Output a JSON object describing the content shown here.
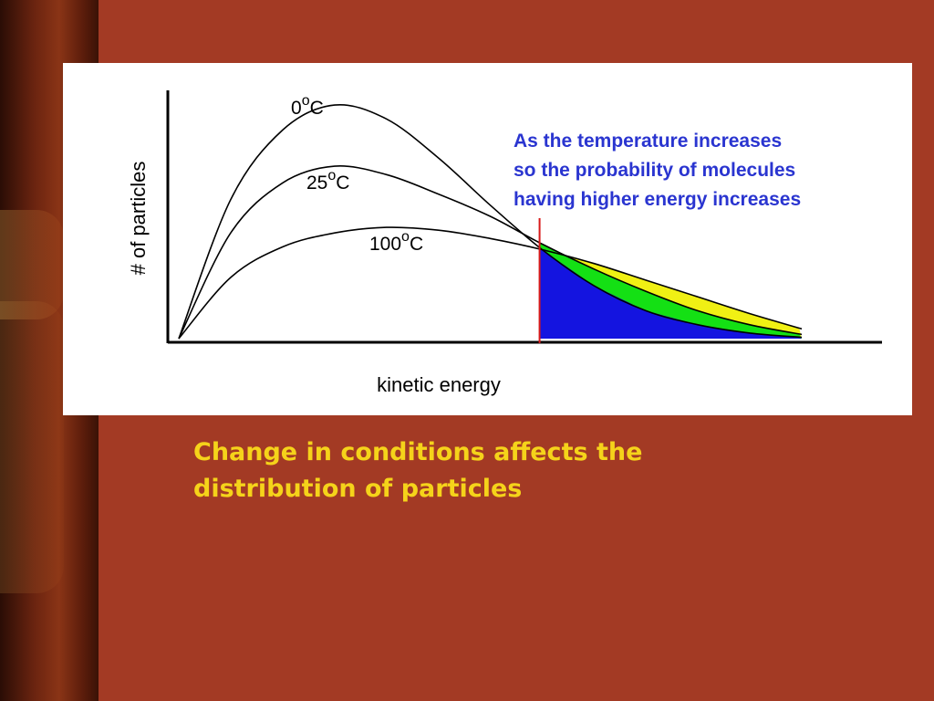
{
  "chart_data": {
    "type": "line",
    "title": "",
    "xlabel": "kinetic energy",
    "ylabel": "# of particles",
    "series": [
      {
        "name": "0",
        "unit": "C",
        "superscript": "o",
        "color": "#000000",
        "x": [
          0,
          1,
          2,
          3,
          4,
          5,
          6,
          7,
          8,
          9,
          10,
          11,
          12
        ],
        "values": [
          0,
          5.0,
          7.5,
          8.4,
          7.9,
          6.5,
          4.8,
          3.2,
          1.9,
          1.0,
          0.5,
          0.2,
          0.05
        ]
      },
      {
        "name": "25",
        "unit": "C",
        "superscript": "o",
        "color": "#000000",
        "x": [
          0,
          1,
          2,
          3,
          4,
          5,
          6,
          7,
          8,
          9,
          10,
          11,
          12
        ],
        "values": [
          0,
          3.8,
          5.6,
          6.2,
          5.9,
          5.2,
          4.4,
          3.4,
          2.5,
          1.7,
          1.0,
          0.5,
          0.15
        ]
      },
      {
        "name": "100",
        "unit": "C",
        "superscript": "o",
        "color": "#000000",
        "x": [
          0,
          1,
          2,
          3,
          4,
          5,
          6,
          7,
          8,
          9,
          10,
          11,
          12
        ],
        "values": [
          0,
          2.2,
          3.3,
          3.8,
          4.0,
          3.9,
          3.6,
          3.2,
          2.7,
          2.1,
          1.5,
          0.9,
          0.35
        ]
      }
    ],
    "threshold_line": {
      "color": "#d81a1a"
    },
    "fill_colors": {
      "0": "#1414e0",
      "25": "#14e014",
      "100": "#f0f014"
    },
    "annotation": [
      "As the temperature increases",
      "so the probability of molecules",
      "having higher energy increases"
    ],
    "grid": false,
    "legend": "none"
  },
  "caption": {
    "line1": "Change in conditions affects the",
    "line2": "distribution of particles"
  },
  "colors": {
    "background": "#a33a24",
    "caption": "#f5d31a",
    "annotation": "#2a35d0"
  }
}
